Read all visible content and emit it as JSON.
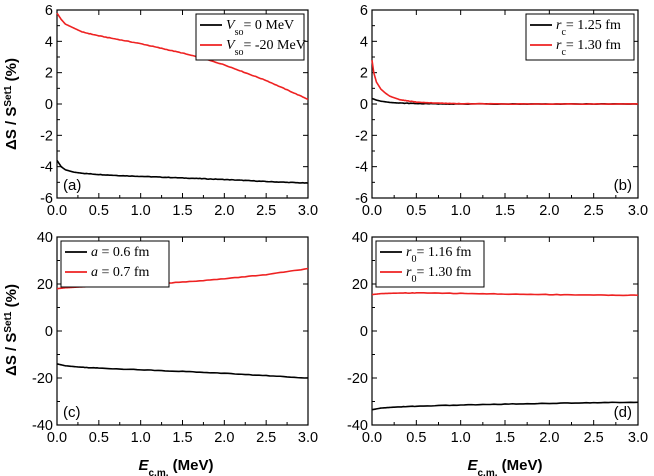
{
  "chart_data": [
    {
      "type": "line",
      "panel_label": "(a)",
      "ylabel": "ΔS / S^Set1 (%)",
      "xlabel": "",
      "xlim": [
        0.0,
        3.0
      ],
      "ylim": [
        -6,
        6
      ],
      "xticks": [
        "0.0",
        "0.5",
        "1.0",
        "1.5",
        "2.0",
        "2.5",
        "3.0"
      ],
      "yticks": [
        "-6",
        "-4",
        "-2",
        "0",
        "2",
        "4",
        "6"
      ],
      "legend_position": "top-right",
      "series": [
        {
          "name": "Vso= 0 MeV",
          "legend_main": "V",
          "legend_sub": "so",
          "legend_rest": "= 0 MeV",
          "color": "#000000",
          "x": [
            0.0,
            0.05,
            0.1,
            0.2,
            0.3,
            0.5,
            0.75,
            1.0,
            1.25,
            1.5,
            1.75,
            2.0,
            2.25,
            2.5,
            2.75,
            3.0
          ],
          "y": [
            -3.6,
            -4.0,
            -4.2,
            -4.35,
            -4.42,
            -4.5,
            -4.57,
            -4.62,
            -4.67,
            -4.72,
            -4.77,
            -4.82,
            -4.88,
            -4.95,
            -5.0,
            -5.05
          ]
        },
        {
          "name": "Vso= -20 MeV",
          "legend_main": "V",
          "legend_sub": "so",
          "legend_rest": "= -20 MeV",
          "color": "#ee2222",
          "x": [
            0.0,
            0.05,
            0.1,
            0.2,
            0.3,
            0.5,
            0.75,
            1.0,
            1.25,
            1.5,
            1.75,
            2.0,
            2.25,
            2.5,
            2.75,
            3.0
          ],
          "y": [
            5.8,
            5.4,
            5.1,
            4.85,
            4.6,
            4.35,
            4.1,
            3.85,
            3.55,
            3.25,
            2.9,
            2.5,
            2.0,
            1.5,
            0.9,
            0.3
          ]
        }
      ]
    },
    {
      "type": "line",
      "panel_label": "(b)",
      "ylabel": "",
      "xlabel": "",
      "xlim": [
        0.0,
        3.0
      ],
      "ylim": [
        -6,
        6
      ],
      "xticks": [
        "0.0",
        "0.5",
        "1.0",
        "1.5",
        "2.0",
        "2.5",
        "3.0"
      ],
      "yticks": [
        "-6",
        "-4",
        "-2",
        "0",
        "2",
        "4",
        "6"
      ],
      "legend_position": "top-right",
      "series": [
        {
          "name": "rc= 1.25 fm",
          "legend_main": "r",
          "legend_sub": "c",
          "legend_rest": "= 1.25 fm",
          "color": "#000000",
          "x": [
            0.0,
            0.05,
            0.1,
            0.2,
            0.3,
            0.5,
            0.75,
            1.0,
            1.5,
            2.0,
            2.5,
            3.0
          ],
          "y": [
            0.35,
            0.25,
            0.18,
            0.1,
            0.06,
            0.03,
            0.01,
            0.0,
            0.0,
            0.0,
            0.0,
            0.0
          ]
        },
        {
          "name": "rc= 1.30 fm",
          "legend_main": "r",
          "legend_sub": "c",
          "legend_rest": "= 1.30 fm",
          "color": "#ee2222",
          "x": [
            0.0,
            0.02,
            0.05,
            0.1,
            0.15,
            0.2,
            0.3,
            0.4,
            0.5,
            0.75,
            1.0,
            1.5,
            2.0,
            2.5,
            3.0
          ],
          "y": [
            2.8,
            2.0,
            1.4,
            0.95,
            0.7,
            0.5,
            0.3,
            0.2,
            0.12,
            0.05,
            0.02,
            0.0,
            0.0,
            0.0,
            0.0
          ]
        }
      ]
    },
    {
      "type": "line",
      "panel_label": "(c)",
      "ylabel": "ΔS / S^Set1 (%)",
      "xlabel": "E_c.m. (MeV)",
      "xlim": [
        0.0,
        3.0
      ],
      "ylim": [
        -40,
        40
      ],
      "xticks": [
        "0.0",
        "0.5",
        "1.0",
        "1.5",
        "2.0",
        "2.5",
        "3.0"
      ],
      "yticks": [
        "-40",
        "-20",
        "0",
        "20",
        "40"
      ],
      "legend_position": "top-left",
      "series": [
        {
          "name": "a = 0.6 fm",
          "legend_main": "a",
          "legend_sub": "",
          "legend_rest": " = 0.6 fm",
          "color": "#000000",
          "x": [
            0.0,
            0.1,
            0.25,
            0.5,
            1.0,
            1.5,
            2.0,
            2.5,
            3.0
          ],
          "y": [
            -14.0,
            -14.8,
            -15.3,
            -15.8,
            -16.5,
            -17.2,
            -18.0,
            -19.0,
            -20.0
          ]
        },
        {
          "name": "a = 0.7 fm",
          "legend_main": "a",
          "legend_sub": "",
          "legend_rest": " = 0.7 fm",
          "color": "#ee2222",
          "x": [
            0.0,
            0.1,
            0.25,
            0.5,
            1.0,
            1.5,
            2.0,
            2.5,
            3.0
          ],
          "y": [
            18.0,
            18.4,
            18.7,
            19.0,
            19.8,
            20.8,
            22.2,
            24.0,
            26.5
          ]
        }
      ]
    },
    {
      "type": "line",
      "panel_label": "(d)",
      "ylabel": "",
      "xlabel": "E_c.m. (MeV)",
      "xlim": [
        0.0,
        3.0
      ],
      "ylim": [
        -40,
        40
      ],
      "xticks": [
        "0.0",
        "0.5",
        "1.0",
        "1.5",
        "2.0",
        "2.5",
        "3.0"
      ],
      "yticks": [
        "-40",
        "-20",
        "0",
        "20",
        "40"
      ],
      "legend_position": "top-left",
      "series": [
        {
          "name": "r0= 1.16 fm",
          "legend_main": "r",
          "legend_sub": "0",
          "legend_rest": "= 1.16 fm",
          "color": "#000000",
          "x": [
            0.0,
            0.1,
            0.25,
            0.5,
            1.0,
            1.5,
            2.0,
            2.5,
            3.0
          ],
          "y": [
            -33.5,
            -32.8,
            -32.4,
            -32.0,
            -31.5,
            -31.1,
            -30.8,
            -30.5,
            -30.3
          ]
        },
        {
          "name": "r0= 1.30 fm",
          "legend_main": "r",
          "legend_sub": "0",
          "legend_rest": "= 1.30 fm",
          "color": "#ee2222",
          "x": [
            0.0,
            0.1,
            0.25,
            0.5,
            1.0,
            1.5,
            2.0,
            2.5,
            3.0
          ],
          "y": [
            15.5,
            15.9,
            16.1,
            16.2,
            16.0,
            15.7,
            15.5,
            15.3,
            15.2
          ]
        }
      ]
    }
  ],
  "axis_text": {
    "ylabel_main": "ΔS / S",
    "ylabel_sup": "Set1",
    "ylabel_unit": " (%)",
    "xlabel_main": "E",
    "xlabel_sub": "c.m.",
    "xlabel_unit": " (MeV)"
  }
}
